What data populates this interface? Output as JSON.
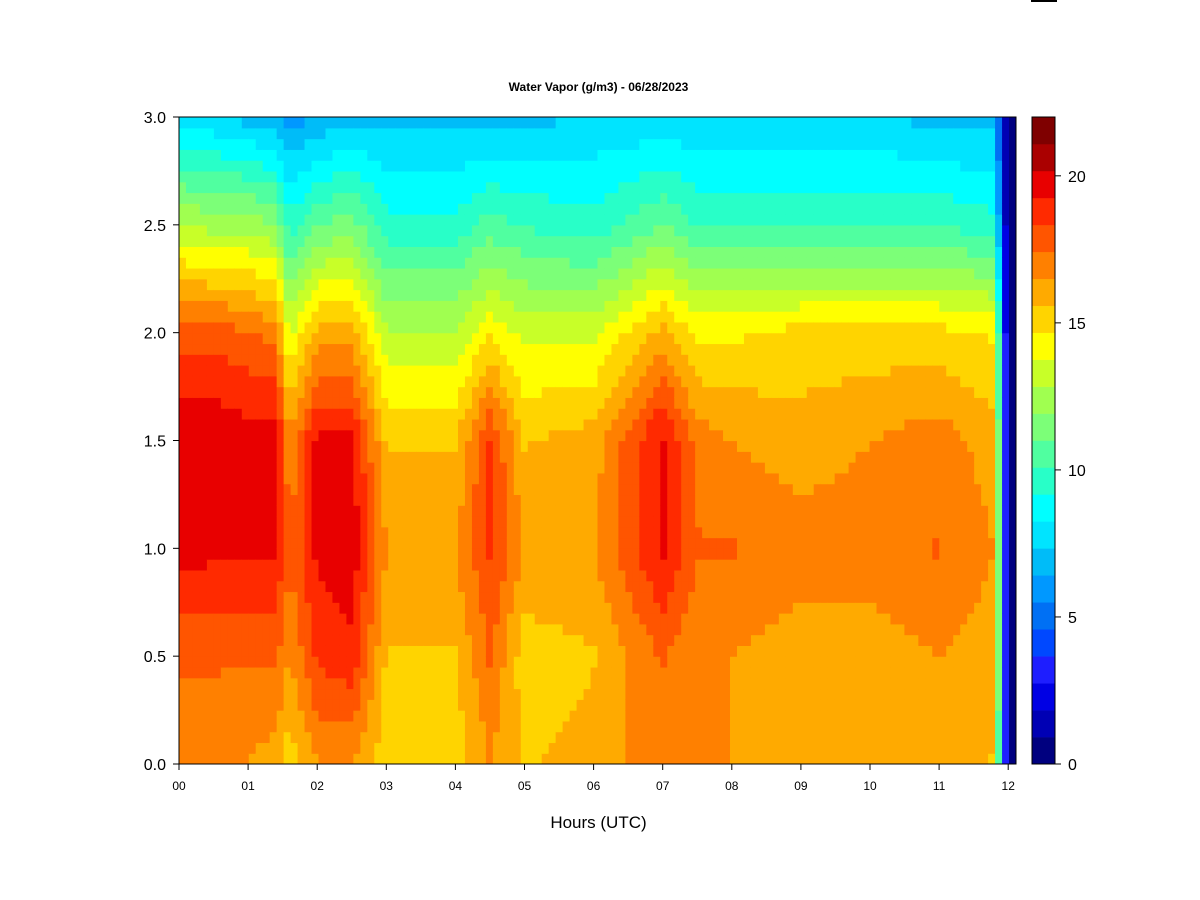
{
  "chart_data": {
    "type": "heatmap",
    "title": "Water Vapor (g/m3) - 06/28/2023",
    "xlabel": "Hours (UTC)",
    "ylabel": "",
    "x_ticks": [
      "00",
      "01",
      "02",
      "03",
      "04",
      "05",
      "06",
      "07",
      "08",
      "09",
      "10",
      "11",
      "12"
    ],
    "x_range": [
      0,
      12
    ],
    "y_ticks": [
      "0.0",
      "0.5",
      "1.0",
      "1.5",
      "2.0",
      "2.5",
      "3.0"
    ],
    "y_range": [
      0,
      3.0
    ],
    "colorbar": {
      "range": [
        0,
        22
      ],
      "ticks": [
        "0",
        "5",
        "10",
        "15",
        "20"
      ],
      "colors": [
        "#00007F",
        "#0000B4",
        "#0000E4",
        "#1E1EFF",
        "#0048FF",
        "#0070F4",
        "#0098FF",
        "#00BCF8",
        "#00E4FF",
        "#00FFFF",
        "#28FFC8",
        "#50FFA0",
        "#7CFF78",
        "#A0FF50",
        "#C8FF28",
        "#FFFF00",
        "#FFD400",
        "#FFAA00",
        "#FF8000",
        "#FF5500",
        "#FF2A00",
        "#E80000",
        "#AA0000",
        "#7F0000"
      ]
    },
    "profile_levels_km": [
      0.0,
      0.5,
      1.0,
      1.5,
      2.0,
      2.5,
      3.0
    ],
    "profiles": [
      {
        "hour": 0.0,
        "values": [
          17.0,
          17.5,
          19.8,
          20.0,
          18.0,
          13.0,
          7.5
        ]
      },
      {
        "hour": 0.5,
        "values": [
          17.0,
          17.5,
          19.5,
          20.0,
          18.0,
          12.5,
          7.5
        ]
      },
      {
        "hour": 1.0,
        "values": [
          16.5,
          17.5,
          19.5,
          19.8,
          17.5,
          12.5,
          7.0
        ]
      },
      {
        "hour": 1.4,
        "values": [
          16.0,
          17.5,
          19.5,
          20.0,
          17.0,
          12.0,
          6.5
        ]
      },
      {
        "hour": 1.6,
        "values": [
          15.0,
          16.5,
          17.5,
          16.5,
          13.5,
          9.5,
          6.0
        ]
      },
      {
        "hour": 2.0,
        "values": [
          16.5,
          18.5,
          19.5,
          19.5,
          16.0,
          11.0,
          6.5
        ]
      },
      {
        "hour": 2.5,
        "values": [
          16.5,
          19.0,
          20.0,
          19.5,
          16.0,
          11.5,
          7.0
        ]
      },
      {
        "hour": 3.0,
        "values": [
          15.0,
          15.5,
          16.5,
          15.5,
          13.0,
          9.5,
          7.0
        ]
      },
      {
        "hour": 4.0,
        "values": [
          15.0,
          15.5,
          16.5,
          15.5,
          13.0,
          9.5,
          7.0
        ]
      },
      {
        "hour": 4.5,
        "values": [
          16.5,
          17.5,
          18.5,
          18.5,
          14.5,
          10.5,
          7.0
        ]
      },
      {
        "hour": 5.0,
        "values": [
          15.5,
          15.0,
          16.5,
          15.5,
          13.5,
          10.0,
          7.0
        ]
      },
      {
        "hour": 6.0,
        "values": [
          16.0,
          15.5,
          16.5,
          16.0,
          13.5,
          9.5,
          7.5
        ]
      },
      {
        "hour": 7.0,
        "values": [
          17.0,
          17.5,
          19.5,
          19.5,
          16.0,
          11.0,
          7.5
        ]
      },
      {
        "hour": 7.5,
        "values": [
          16.5,
          16.5,
          17.5,
          17.0,
          14.5,
          10.0,
          7.5
        ]
      },
      {
        "hour": 8.0,
        "values": [
          16.5,
          16.5,
          17.5,
          16.5,
          14.5,
          10.0,
          7.5
        ]
      },
      {
        "hour": 9.0,
        "values": [
          16.0,
          16.0,
          17.0,
          16.0,
          15.0,
          10.0,
          7.5
        ]
      },
      {
        "hour": 10.0,
        "values": [
          16.0,
          16.0,
          17.0,
          16.5,
          15.0,
          10.0,
          7.5
        ]
      },
      {
        "hour": 11.0,
        "values": [
          16.0,
          16.5,
          17.5,
          17.0,
          15.0,
          10.0,
          7.0
        ]
      },
      {
        "hour": 11.8,
        "values": [
          15.5,
          16.0,
          16.5,
          16.0,
          14.5,
          9.5,
          7.0
        ]
      },
      {
        "hour": 12.0,
        "values": [
          0.0,
          0.0,
          0.0,
          0.0,
          0.0,
          0.0,
          0.0
        ]
      }
    ]
  }
}
